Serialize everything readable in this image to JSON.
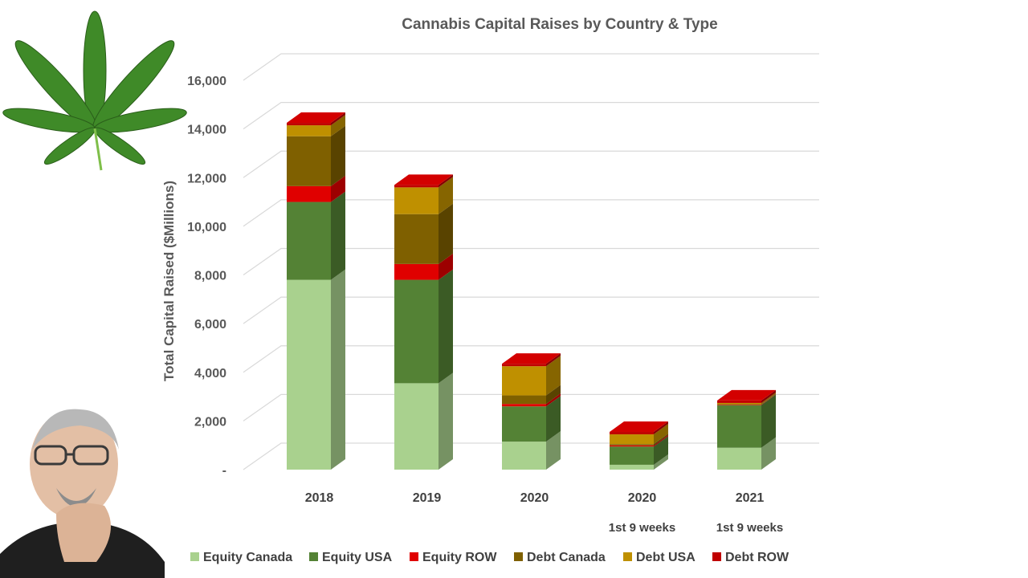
{
  "chart_data": {
    "type": "bar",
    "stacked": true,
    "three_d": true,
    "title": "Cannabis Capital Raises by Country & Type",
    "ylabel": "Total Capital Raised ($Millions)",
    "xlabel": "",
    "ylim": [
      0,
      16000
    ],
    "yticks": [
      {
        "value": 0,
        "label": "-"
      },
      {
        "value": 2000,
        "label": "2,000"
      },
      {
        "value": 4000,
        "label": "4,000"
      },
      {
        "value": 6000,
        "label": "6,000"
      },
      {
        "value": 8000,
        "label": "8,000"
      },
      {
        "value": 10000,
        "label": "10,000"
      },
      {
        "value": 12000,
        "label": "12,000"
      },
      {
        "value": 14000,
        "label": "14,000"
      },
      {
        "value": 16000,
        "label": "16,000"
      }
    ],
    "grid": true,
    "legend_position": "bottom",
    "categories": [
      {
        "label": "2018",
        "sublabel": ""
      },
      {
        "label": "2019",
        "sublabel": ""
      },
      {
        "label": "2020",
        "sublabel": ""
      },
      {
        "label": "2020",
        "sublabel": "1st 9 weeks"
      },
      {
        "label": "2021",
        "sublabel": "1st 9 weeks"
      }
    ],
    "series": [
      {
        "name": "Equity Canada",
        "color": "#a9d18e",
        "values": [
          7800,
          3550,
          1150,
          200,
          900
        ]
      },
      {
        "name": "Equity USA",
        "color": "#548235",
        "values": [
          3200,
          4250,
          1450,
          750,
          1750
        ]
      },
      {
        "name": "Equity ROW",
        "color": "#e00000",
        "values": [
          650,
          650,
          100,
          50,
          20
        ]
      },
      {
        "name": "Debt Canada",
        "color": "#7f6000",
        "values": [
          2050,
          2050,
          350,
          50,
          20
        ]
      },
      {
        "name": "Debt USA",
        "color": "#bf9000",
        "values": [
          450,
          1100,
          1200,
          400,
          50
        ]
      },
      {
        "name": "Debt ROW",
        "color": "#c00000",
        "values": [
          100,
          100,
          100,
          100,
          100
        ]
      }
    ]
  },
  "images": {
    "logo": {
      "name": "cannabis-leaf-icon",
      "colors": [
        "#2e6b1f",
        "#4a8f2c",
        "#7fbf4a"
      ]
    },
    "presenter": {
      "name": "presenter-photo",
      "colors": [
        "#e8c9b2",
        "#1f1f1f",
        "#9a9a9a"
      ]
    }
  }
}
